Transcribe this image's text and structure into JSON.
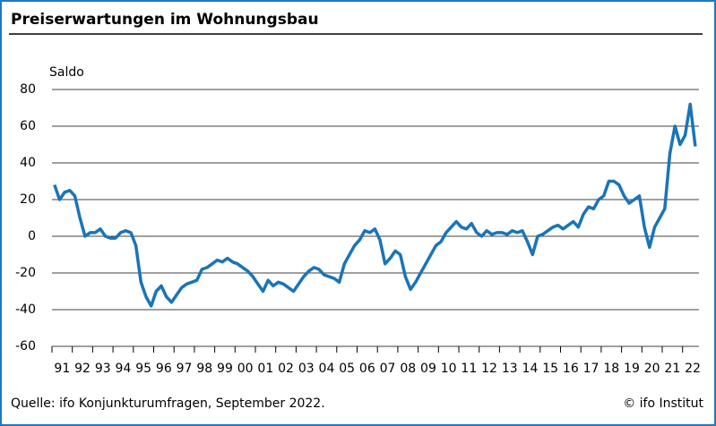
{
  "chart_data": {
    "type": "line",
    "title": "Preiserwartungen im Wohnungsbau",
    "y_label": "Saldo",
    "source": "Quelle: ifo Konjunkturumfragen, September 2022.",
    "credit": "© ifo Institut",
    "categories": [
      "91",
      null,
      null,
      null,
      "92",
      null,
      null,
      null,
      "93",
      null,
      null,
      null,
      "94",
      null,
      null,
      null,
      "95",
      null,
      null,
      null,
      "96",
      null,
      null,
      null,
      "97",
      null,
      null,
      null,
      "98",
      null,
      null,
      null,
      "99",
      null,
      null,
      null,
      "00",
      null,
      null,
      null,
      "01",
      null,
      null,
      null,
      "02",
      null,
      null,
      null,
      "03",
      null,
      null,
      null,
      "04",
      null,
      null,
      null,
      "05",
      null,
      null,
      null,
      "06",
      null,
      null,
      null,
      "07",
      null,
      null,
      null,
      "08",
      null,
      null,
      null,
      "09",
      null,
      null,
      null,
      "10",
      null,
      null,
      null,
      "11",
      null,
      null,
      null,
      "12",
      null,
      null,
      null,
      "13",
      null,
      null,
      null,
      "14",
      null,
      null,
      null,
      "15",
      null,
      null,
      null,
      "16",
      null,
      null,
      null,
      "17",
      null,
      null,
      null,
      "18",
      null,
      null,
      null,
      "19",
      null,
      null,
      null,
      "20",
      null,
      null,
      null,
      "21",
      null,
      null,
      null,
      "22",
      null,
      null
    ],
    "series": [
      {
        "color": "#1a74b8",
        "values": [
          28,
          20,
          24,
          25,
          22,
          10,
          0,
          2,
          2,
          4,
          0,
          -1,
          -1,
          2,
          3,
          2,
          -5,
          -25,
          -33,
          -38,
          -30,
          -27,
          -33,
          -36,
          -32,
          -28,
          -26,
          -25,
          -24,
          -18,
          -17,
          -15,
          -13,
          -14,
          -12,
          -14,
          -15,
          -17,
          -19,
          -22,
          -26,
          -30,
          -24,
          -27,
          -25,
          -26,
          -28,
          -30,
          -26,
          -22,
          -19,
          -17,
          -18,
          -21,
          -22,
          -23,
          -25,
          -15,
          -10,
          -5,
          -2,
          3,
          2,
          4,
          -2,
          -15,
          -12,
          -8,
          -10,
          -22,
          -29,
          -25,
          -20,
          -15,
          -10,
          -5,
          -3,
          2,
          5,
          8,
          5,
          4,
          7,
          2,
          0,
          3,
          1,
          2,
          2,
          1,
          3,
          2,
          3,
          -3,
          -10,
          0,
          1,
          3,
          5,
          6,
          4,
          6,
          8,
          5,
          12,
          16,
          15,
          20,
          22,
          30,
          30,
          28,
          22,
          18,
          20,
          22,
          5,
          -6,
          5,
          10,
          15,
          45,
          60,
          50,
          55,
          72,
          49
        ]
      }
    ],
    "ylim": [
      -60,
      80
    ],
    "yticks": [
      -60,
      -40,
      -20,
      0,
      20,
      40,
      60,
      80
    ],
    "grid": true
  }
}
